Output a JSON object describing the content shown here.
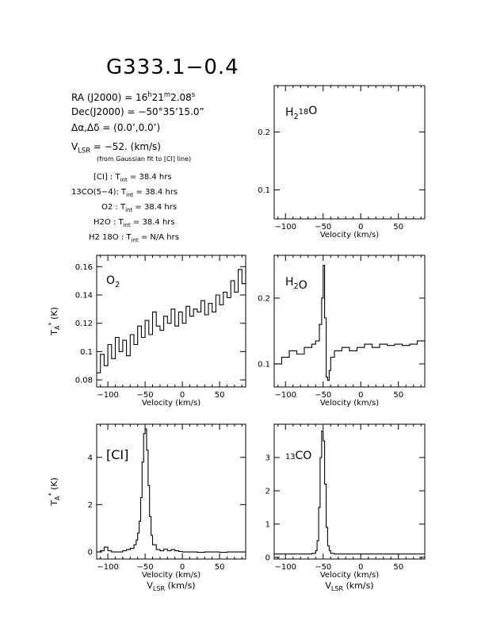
{
  "title": "G333.1−0.4",
  "header": {
    "ra_label": "RA (J2000)",
    "ra_h": "16",
    "ra_m": "21",
    "ra_s": "2.08",
    "dec_label": "Dec(J2000)",
    "dec_value": "−50°35’15.0”",
    "offset_label": "Δα,Δδ",
    "offset_value": "(0.0’,0.0’)",
    "vlsr_label": "V",
    "vlsr_sub": "LSR",
    "vlsr_value": "= −52. (km/s)",
    "vlsr_note": "(from Gaussian fit to [CI] line)",
    "tint": [
      {
        "line": "[CI]",
        "value": "38.4 hrs"
      },
      {
        "line": "13CO(5−4)",
        "value": "38.4 hrs"
      },
      {
        "line": "O2",
        "value": "38.4 hrs"
      },
      {
        "line": "H2O",
        "value": "38.4 hrs"
      },
      {
        "line": "H2 18O",
        "value": "N/A hrs"
      }
    ]
  },
  "chart_data": [
    {
      "panel": "H2_18O",
      "type": "line",
      "label": "H218O",
      "xlabel": "Velocity (km/s)",
      "xlim": [
        -115,
        85
      ],
      "ylim": [
        0.05,
        0.28
      ],
      "xticks": [
        -100,
        -50,
        0,
        50
      ],
      "yticks": [
        0.1,
        0.2
      ],
      "x": [],
      "y": []
    },
    {
      "panel": "O2",
      "type": "line",
      "label": "O2",
      "xlabel": "Velocity (km/s)",
      "ylabel": "TA* (K)",
      "xlim": [
        -115,
        85
      ],
      "ylim": [
        0.075,
        0.168
      ],
      "xticks": [
        -100,
        -50,
        0,
        50
      ],
      "yticks": [
        0.08,
        0.1,
        0.12,
        0.14,
        0.16
      ],
      "x": [
        -115,
        -110,
        -105,
        -100,
        -95,
        -90,
        -85,
        -80,
        -75,
        -70,
        -65,
        -60,
        -55,
        -50,
        -45,
        -40,
        -35,
        -30,
        -25,
        -20,
        -15,
        -10,
        -5,
        0,
        5,
        10,
        15,
        20,
        25,
        30,
        35,
        40,
        45,
        50,
        55,
        60,
        65,
        70,
        75,
        80,
        85
      ],
      "y": [
        0.085,
        0.098,
        0.09,
        0.105,
        0.095,
        0.11,
        0.1,
        0.108,
        0.097,
        0.112,
        0.105,
        0.118,
        0.11,
        0.122,
        0.112,
        0.128,
        0.118,
        0.115,
        0.125,
        0.12,
        0.13,
        0.118,
        0.128,
        0.12,
        0.132,
        0.125,
        0.13,
        0.128,
        0.136,
        0.126,
        0.134,
        0.128,
        0.14,
        0.133,
        0.142,
        0.138,
        0.15,
        0.142,
        0.158,
        0.148,
        0.16
      ]
    },
    {
      "panel": "H2O",
      "type": "line",
      "label": "H2O",
      "xlabel": "Velocity (km/s)",
      "xlim": [
        -115,
        85
      ],
      "ylim": [
        0.065,
        0.265
      ],
      "xticks": [
        -100,
        -50,
        0,
        50
      ],
      "yticks": [
        0.1,
        0.2
      ],
      "x": [
        -115,
        -105,
        -95,
        -85,
        -75,
        -65,
        -60,
        -55,
        -52,
        -50,
        -48,
        -46,
        -44,
        -42,
        -40,
        -35,
        -25,
        -15,
        -5,
        5,
        15,
        25,
        35,
        45,
        55,
        65,
        75,
        85
      ],
      "y": [
        0.1,
        0.11,
        0.12,
        0.115,
        0.125,
        0.13,
        0.135,
        0.16,
        0.2,
        0.25,
        0.17,
        0.08,
        0.075,
        0.09,
        0.11,
        0.12,
        0.125,
        0.12,
        0.125,
        0.13,
        0.125,
        0.13,
        0.128,
        0.13,
        0.128,
        0.13,
        0.135,
        0.13
      ]
    },
    {
      "panel": "CI",
      "type": "line",
      "label": "[CI]",
      "xlabel": "Velocity (km/s)",
      "xlabel2": "VLSR (km/s)",
      "ylabel": "TA* (K)",
      "xlim": [
        -115,
        85
      ],
      "ylim": [
        -0.3,
        5.4
      ],
      "xticks": [
        -100,
        -50,
        0,
        50
      ],
      "yticks": [
        0,
        2,
        4
      ],
      "x": [
        -115,
        -110,
        -105,
        -100,
        -95,
        -90,
        -85,
        -80,
        -75,
        -70,
        -65,
        -62,
        -60,
        -58,
        -56,
        -54,
        -52,
        -50,
        -48,
        -46,
        -44,
        -42,
        -40,
        -35,
        -30,
        -25,
        -20,
        -15,
        -10,
        -5,
        0,
        10,
        20,
        30,
        40,
        50,
        60,
        70,
        80,
        85
      ],
      "y": [
        0.0,
        0.05,
        0.2,
        0.05,
        0.0,
        0.0,
        0.0,
        0.05,
        0.1,
        0.15,
        0.3,
        0.5,
        0.8,
        1.3,
        2.3,
        3.8,
        5.0,
        5.2,
        4.3,
        2.8,
        1.5,
        0.7,
        0.3,
        0.1,
        0.05,
        0.12,
        0.05,
        0.1,
        0.05,
        0.02,
        0.0,
        0.0,
        -0.02,
        0.0,
        0.0,
        -0.02,
        0.0,
        0.0,
        0.0,
        0.0
      ]
    },
    {
      "panel": "13CO",
      "type": "line",
      "label": "13CO",
      "xlabel": "Velocity (km/s)",
      "xlabel2": "VLSR (km/s)",
      "xlim": [
        -115,
        85
      ],
      "ylim": [
        -0.05,
        4.0
      ],
      "xticks": [
        -100,
        -50,
        0,
        50
      ],
      "yticks": [
        0,
        1,
        2,
        3
      ],
      "x": [
        -115,
        -100,
        -85,
        -70,
        -65,
        -60,
        -58,
        -56,
        -54,
        -52,
        -50,
        -48,
        -46,
        -44,
        -42,
        -40,
        -35,
        -25,
        -10,
        10,
        30,
        50,
        70,
        85
      ],
      "y": [
        0.1,
        0.1,
        0.1,
        0.1,
        0.12,
        0.2,
        0.5,
        1.5,
        3.0,
        3.8,
        3.5,
        2.2,
        0.9,
        0.35,
        0.2,
        0.12,
        0.1,
        0.1,
        0.1,
        0.1,
        0.1,
        0.1,
        0.1,
        0.1
      ]
    }
  ]
}
